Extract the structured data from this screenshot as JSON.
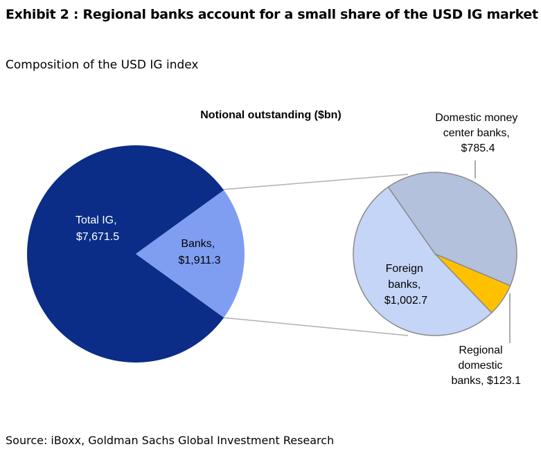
{
  "header": {
    "title": "Exhibit 2 : Regional banks account for a small share of the USD IG market",
    "subtitle": "Composition of the USD IG index"
  },
  "footer": {
    "source": "Source: iBoxx, Goldman Sachs Global Investment Research"
  },
  "chart_data": {
    "type": "pie",
    "title": "Notional outstanding ($bn)",
    "main_pie": {
      "slices": [
        {
          "label": "Total IG,",
          "value_label": "$7,671.5",
          "value": 7671.5,
          "color": "#0b2d87"
        },
        {
          "label": "Banks,",
          "value_label": "$1,911.3",
          "value": 1911.3,
          "color": "#7f9ef2"
        }
      ]
    },
    "breakdown_pie": {
      "of": "Banks",
      "slices": [
        {
          "label": "Domestic money center banks,",
          "value_label": "$785.4",
          "value": 785.4,
          "color": "#b4c1dc"
        },
        {
          "label": "Regional domestic banks,",
          "value_label": "$123.1",
          "value": 123.1,
          "color": "#ffc000"
        },
        {
          "label": "Foreign banks,",
          "value_label": "$1,002.7",
          "value": 1002.7,
          "color": "#c5d5f7"
        }
      ]
    }
  }
}
